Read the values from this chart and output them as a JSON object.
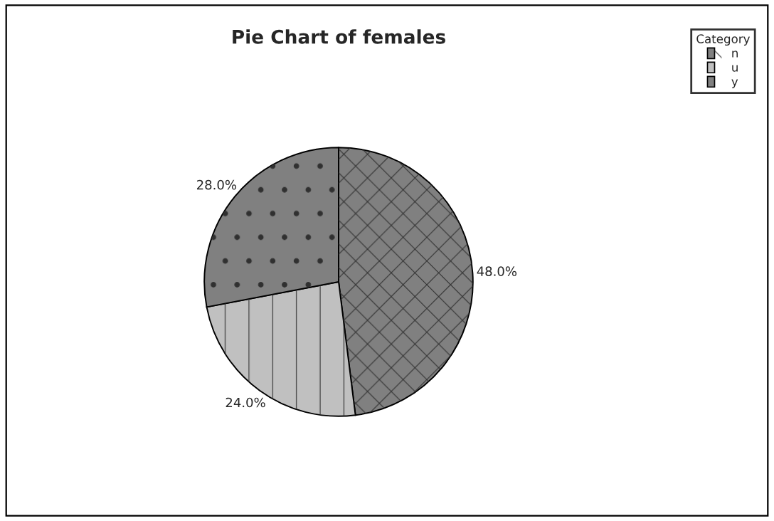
{
  "chart_data": {
    "type": "pie",
    "title": "Pie Chart of females",
    "legend_title": "Category",
    "legend": "top right",
    "categories": [
      "n",
      "u",
      "y"
    ],
    "values": [
      48,
      24,
      28
    ],
    "colors": [
      "#808080",
      "#c0c0c0",
      "#808080"
    ],
    "value_labels": [
      "48.0%",
      "24.0%",
      "28.0%"
    ]
  }
}
